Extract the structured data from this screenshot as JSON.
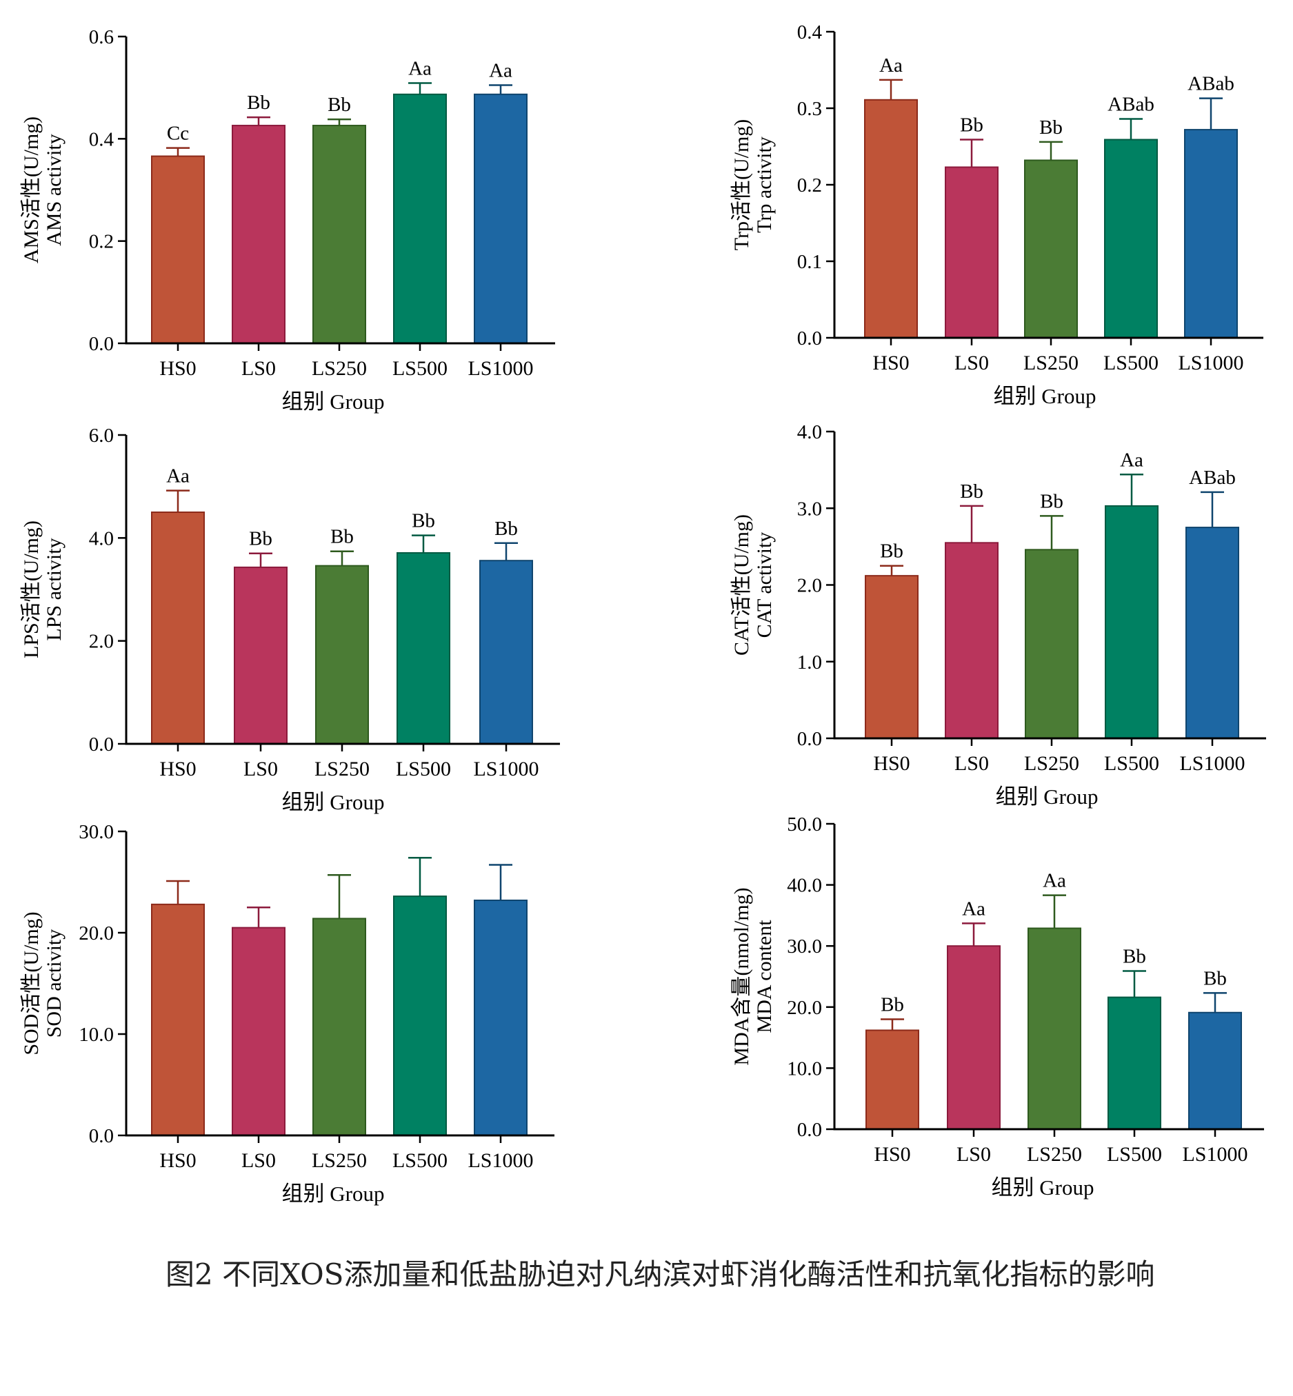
{
  "caption": "图2 不同XOS添加量和低盐胁迫对凡纳滨对虾消化酶活性和抗氧化指标的影响",
  "colors": {
    "bars": [
      "#bf5438",
      "#b9355c",
      "#4b7c35",
      "#008162",
      "#1d67a3"
    ],
    "errors": [
      "#8c2a1a",
      "#8c1a3c",
      "#2e5a1e",
      "#005a42",
      "#0f456e"
    ]
  },
  "chart_data": [
    {
      "id": "ams",
      "type": "bar",
      "categories": [
        "HS0",
        "LS0",
        "LS250",
        "LS500",
        "LS1000"
      ],
      "values": [
        0.366,
        0.426,
        0.426,
        0.487,
        0.487
      ],
      "errors": [
        0.016,
        0.016,
        0.012,
        0.022,
        0.018
      ],
      "labels": [
        "Cc",
        "Bb",
        "Bb",
        "Aa",
        "Aa"
      ],
      "ylabel_cn": "AMS活性(U/mg)",
      "ylabel_en": "AMS activity",
      "xlabel": "组别 Group",
      "ylim": [
        0,
        0.6
      ],
      "yticks": [
        "0.0",
        "0.2",
        "0.4",
        "0.6"
      ]
    },
    {
      "id": "trp",
      "type": "bar",
      "categories": [
        "HS0",
        "LS0",
        "LS250",
        "LS500",
        "LS1000"
      ],
      "values": [
        0.311,
        0.223,
        0.232,
        0.259,
        0.272
      ],
      "errors": [
        0.026,
        0.036,
        0.024,
        0.027,
        0.041
      ],
      "labels": [
        "Aa",
        "Bb",
        "Bb",
        "ABab",
        "ABab"
      ],
      "ylabel_cn": "Trp活性(U/mg)",
      "ylabel_en": "Trp activity",
      "xlabel": "组别 Group",
      "ylim": [
        0,
        0.4
      ],
      "yticks": [
        "0.0",
        "0.1",
        "0.2",
        "0.3",
        "0.4"
      ]
    },
    {
      "id": "lps",
      "type": "bar",
      "categories": [
        "HS0",
        "LS0",
        "LS250",
        "LS500",
        "LS1000"
      ],
      "values": [
        4.5,
        3.43,
        3.46,
        3.71,
        3.56
      ],
      "errors": [
        0.42,
        0.27,
        0.28,
        0.34,
        0.34
      ],
      "labels": [
        "Aa",
        "Bb",
        "Bb",
        "Bb",
        "Bb"
      ],
      "ylabel_cn": "LPS活性(U/mg)",
      "ylabel_en": "LPS activity",
      "xlabel": "组别 Group",
      "ylim": [
        0,
        6
      ],
      "yticks": [
        "0.0",
        "2.0",
        "4.0",
        "6.0"
      ]
    },
    {
      "id": "cat",
      "type": "bar",
      "categories": [
        "HS0",
        "LS0",
        "LS250",
        "LS500",
        "LS1000"
      ],
      "values": [
        2.12,
        2.55,
        2.46,
        3.03,
        2.75
      ],
      "errors": [
        0.13,
        0.48,
        0.44,
        0.41,
        0.46
      ],
      "labels": [
        "Bb",
        "Bb",
        "Bb",
        "Aa",
        "ABab"
      ],
      "ylabel_cn": "CAT活性(U/mg)",
      "ylabel_en": "CAT activity",
      "xlabel": "组别 Group",
      "ylim": [
        0,
        4
      ],
      "yticks": [
        "0.0",
        "1.0",
        "2.0",
        "3.0",
        "4.0"
      ]
    },
    {
      "id": "sod",
      "type": "bar",
      "categories": [
        "HS0",
        "LS0",
        "LS250",
        "LS500",
        "LS1000"
      ],
      "values": [
        22.8,
        20.5,
        21.4,
        23.6,
        23.2
      ],
      "errors": [
        2.3,
        2.0,
        4.3,
        3.8,
        3.5
      ],
      "labels": [
        "",
        "",
        "",
        "",
        ""
      ],
      "ylabel_cn": "SOD活性(U/mg)",
      "ylabel_en": "SOD activity",
      "xlabel": "组别 Group",
      "ylim": [
        0,
        30
      ],
      "yticks": [
        "0.0",
        "10.0",
        "20.0",
        "30.0"
      ]
    },
    {
      "id": "mda",
      "type": "bar",
      "categories": [
        "HS0",
        "LS0",
        "LS250",
        "LS500",
        "LS1000"
      ],
      "values": [
        16.2,
        30.0,
        32.9,
        21.6,
        19.1
      ],
      "errors": [
        1.8,
        3.7,
        5.4,
        4.3,
        3.2
      ],
      "labels": [
        "Bb",
        "Aa",
        "Aa",
        "Bb",
        "Bb"
      ],
      "ylabel_cn": "MDA含量(nmol/mg)",
      "ylabel_en": "MDA content",
      "xlabel": "组别 Group",
      "ylim": [
        0,
        50
      ],
      "yticks": [
        "0.0",
        "10.0",
        "20.0",
        "30.0",
        "40.0",
        "50.0"
      ]
    }
  ]
}
